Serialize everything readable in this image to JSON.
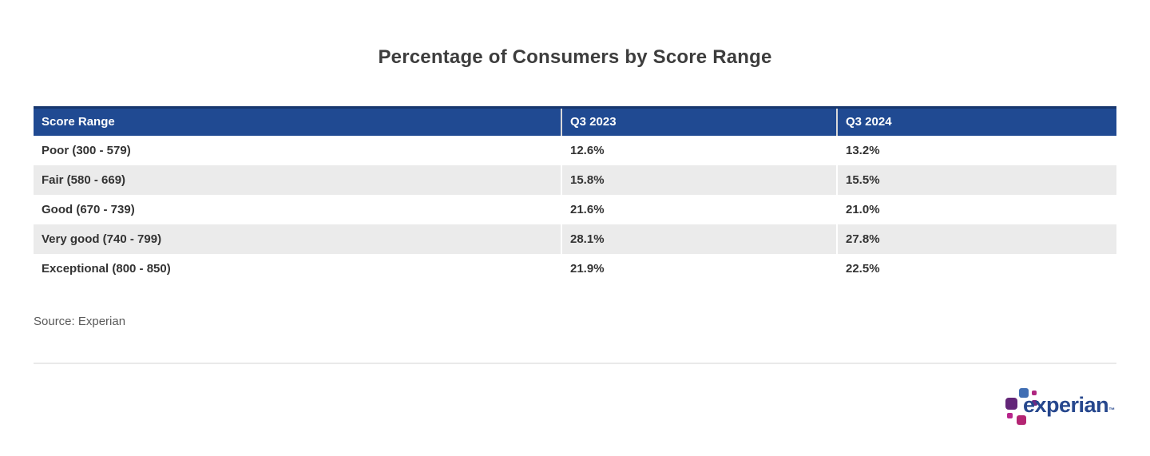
{
  "title": "Percentage of Consumers by Score Range",
  "source": "Source: Experian",
  "table": {
    "columns": [
      "Score Range",
      "Q3 2023",
      "Q3 2024"
    ],
    "rows": [
      {
        "score_range": "Poor (300 - 579)",
        "q3_2023": "12.6%",
        "q3_2024": "13.2%"
      },
      {
        "score_range": "Fair (580 - 669)",
        "q3_2023": "15.8%",
        "q3_2024": "15.5%"
      },
      {
        "score_range": "Good (670 - 739)",
        "q3_2023": "21.6%",
        "q3_2024": "21.0%"
      },
      {
        "score_range": "Very good (740 - 799)",
        "q3_2023": "28.1%",
        "q3_2024": "27.8%"
      },
      {
        "score_range": "Exceptional (800 - 850)",
        "q3_2023": "21.9%",
        "q3_2024": "22.5%"
      }
    ]
  },
  "logo": {
    "wordmark": "experian",
    "trademark": "™"
  },
  "colors": {
    "header_bg": "#204a92",
    "header_top_border": "#17366e",
    "header_divider": "#d9d9d9",
    "row_alt_bg": "#ebebeb",
    "body_text": "#333333",
    "title_text": "#3d3d3d",
    "source_text": "#5a5a5a",
    "divider": "#e9e9e9",
    "logo_blue": "#406eb3",
    "logo_purple": "#632678",
    "logo_magenta": "#b12384",
    "wordmark_blue": "#26478d"
  },
  "chart_data": {
    "type": "table",
    "title": "Percentage of Consumers by Score Range",
    "columns": [
      "Score Range",
      "Q3 2023",
      "Q3 2024"
    ],
    "categories": [
      "Poor (300 - 579)",
      "Fair (580 - 669)",
      "Good (670 - 739)",
      "Very good (740 - 799)",
      "Exceptional (800 - 850)"
    ],
    "series": [
      {
        "name": "Q3 2023",
        "values": [
          12.6,
          15.8,
          21.6,
          28.1,
          21.9
        ]
      },
      {
        "name": "Q3 2024",
        "values": [
          13.2,
          15.5,
          21.0,
          27.8,
          22.5
        ]
      }
    ],
    "unit": "%",
    "source": "Source: Experian",
    "layout_hints": {
      "header_style": "navy background, white bold text",
      "row_striping": "odd white, even light gray",
      "grid": "off"
    }
  }
}
